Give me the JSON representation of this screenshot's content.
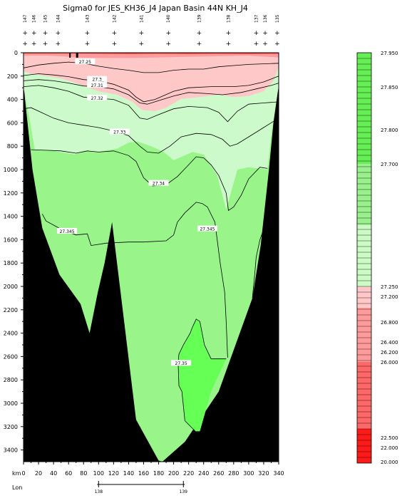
{
  "chart_data": {
    "type": "heatmap",
    "title": "Sigma0 for JES_KH36_J4 Japan Basin 44N KH_J4",
    "xlabel": "km",
    "lon_label": "Lon",
    "xlim": [
      0,
      340
    ],
    "ylim": [
      3500,
      0
    ],
    "x_ticks": [
      0,
      20,
      40,
      60,
      80,
      100,
      120,
      140,
      160,
      180,
      200,
      220,
      240,
      260,
      280,
      300,
      320,
      340
    ],
    "y_ticks": [
      0,
      200,
      400,
      600,
      800,
      1000,
      1200,
      1400,
      1600,
      1800,
      2000,
      2200,
      2400,
      2600,
      2800,
      3000,
      3200,
      3400
    ],
    "lon_ticks": [
      {
        "km": 100,
        "label": "138"
      },
      {
        "km": 213,
        "label": "139"
      }
    ],
    "stations": [
      {
        "km": 2,
        "label": "147"
      },
      {
        "km": 14,
        "label": "146"
      },
      {
        "km": 29,
        "label": "145"
      },
      {
        "km": 46,
        "label": "144"
      },
      {
        "km": 85,
        "label": "143"
      },
      {
        "km": 121,
        "label": "142"
      },
      {
        "km": 157,
        "label": "141"
      },
      {
        "km": 193,
        "label": "140"
      },
      {
        "km": 234,
        "label": "139"
      },
      {
        "km": 273,
        "label": "138"
      },
      {
        "km": 310,
        "label": "137"
      },
      {
        "km": 322,
        "label": "136"
      },
      {
        "km": 338,
        "label": "135"
      }
    ],
    "contour_labels": [
      {
        "text": "27.25",
        "km": 82,
        "depth": 80
      },
      {
        "text": "27.3",
        "km": 98,
        "depth": 230
      },
      {
        "text": "27.31",
        "km": 98,
        "depth": 280
      },
      {
        "text": "27.32",
        "km": 98,
        "depth": 390
      },
      {
        "text": "27.33",
        "km": 128,
        "depth": 680
      },
      {
        "text": "27.34",
        "km": 180,
        "depth": 1120
      },
      {
        "text": "27.345",
        "km": 58,
        "depth": 1530
      },
      {
        "text": "27.345",
        "km": 245,
        "depth": 1510
      },
      {
        "text": "27.35",
        "km": 210,
        "depth": 2660
      }
    ],
    "colorbar": {
      "labels": [
        {
          "value": "27.950",
          "pos": 0.0
        },
        {
          "value": "27.850",
          "pos": 0.0833
        },
        {
          "value": "27.800",
          "pos": 0.1875
        },
        {
          "value": "27.700",
          "pos": 0.2708
        },
        {
          "value": "27.250",
          "pos": 0.5694
        },
        {
          "value": "27.200",
          "pos": 0.5938
        },
        {
          "value": "26.800",
          "pos": 0.6563
        },
        {
          "value": "26.400",
          "pos": 0.7049
        },
        {
          "value": "26.200",
          "pos": 0.7292
        },
        {
          "value": "26.000",
          "pos": 0.7535
        },
        {
          "value": "22.500",
          "pos": 0.9375
        },
        {
          "value": "22.000",
          "pos": 0.9618
        },
        {
          "value": "20.000",
          "pos": 0.9965
        }
      ],
      "bands": [
        {
          "from": 0.0,
          "to": 0.2708,
          "color": "#66ee55"
        },
        {
          "from": 0.2708,
          "to": 0.42,
          "color": "#99f08c"
        },
        {
          "from": 0.42,
          "to": 0.5694,
          "color": "#ccfac4"
        },
        {
          "from": 0.5694,
          "to": 0.6215,
          "color": "#ffc8c8"
        },
        {
          "from": 0.6215,
          "to": 0.7535,
          "color": "#ff9a9a"
        },
        {
          "from": 0.7535,
          "to": 0.9167,
          "color": "#ff6868"
        },
        {
          "from": 0.9167,
          "to": 1.0,
          "color": "#ff1a1a"
        }
      ]
    },
    "colors": {
      "bathymetry": "#000000",
      "lightest_green": "#ccfacb",
      "light_green": "#99f58a",
      "deep_green": "#66ff55",
      "pink_light": "#ffc8c8",
      "pink_mid": "#ff9a9a",
      "red": "#ff5050"
    }
  }
}
